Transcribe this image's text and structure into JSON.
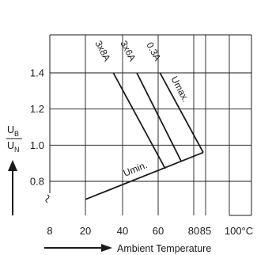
{
  "chart_data": {
    "type": "line",
    "title": "",
    "xlabel": "Ambient Temperature",
    "ylabel": {
      "numerator": "U",
      "numerator_sub": "B",
      "denominator": "U",
      "denominator_sub": "N"
    },
    "x_ticks": [
      "8",
      "20",
      "40",
      "60",
      "80",
      "85",
      "100°C"
    ],
    "y_ticks": [
      "0.8",
      "1.0",
      "1.2",
      "1.4"
    ],
    "xlim": [
      8,
      108
    ],
    "ylim": [
      0.7,
      1.58
    ],
    "grid": true,
    "series": [
      {
        "name": "3x8A",
        "x": [
          35,
          64
        ],
        "y": [
          1.4,
          0.87
        ]
      },
      {
        "name": "3x6A",
        "x": [
          48,
          73
        ],
        "y": [
          1.4,
          0.91
        ]
      },
      {
        "name": "0.3A",
        "x": [
          61,
          84
        ],
        "y": [
          1.4,
          0.96
        ]
      },
      {
        "name": "Umax.",
        "x": [
          61,
          84
        ],
        "y": [
          1.4,
          0.96
        ]
      },
      {
        "name": "Umin.",
        "x": [
          20,
          84
        ],
        "y": [
          0.7,
          0.96
        ]
      }
    ]
  }
}
